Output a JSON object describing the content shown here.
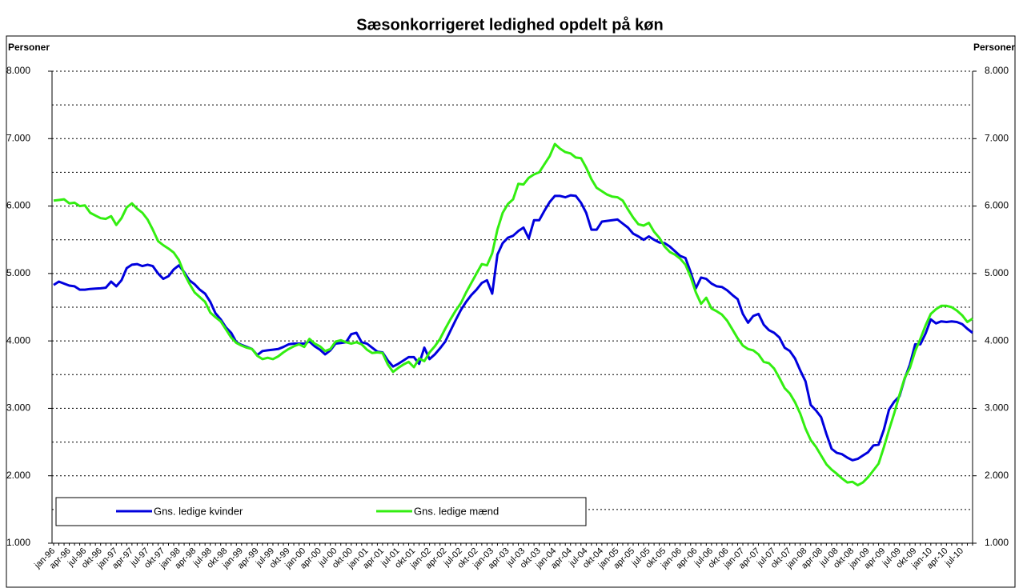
{
  "chart_data": {
    "type": "line",
    "title": "Sæsonkorrigeret ledighed opdelt på køn",
    "y_label": "Personer",
    "y2_label": "Personer",
    "categories": [
      "jan-96",
      null,
      null,
      "apr-96",
      null,
      null,
      "jul-96",
      null,
      null,
      "okt-96",
      null,
      null,
      "jan-97",
      null,
      null,
      "apr-97",
      null,
      null,
      "jul-97",
      null,
      null,
      "okt-97",
      null,
      null,
      "jan-98",
      null,
      null,
      "apr-98",
      null,
      null,
      "jul-98",
      null,
      null,
      "okt-98",
      null,
      null,
      "jan-99",
      null,
      null,
      "apr-99",
      null,
      null,
      "jul-99",
      null,
      null,
      "okt-99",
      null,
      null,
      "jan-00",
      null,
      null,
      "apr-00",
      null,
      null,
      "jul-00",
      null,
      null,
      "okt-00",
      null,
      null,
      "jan-01",
      null,
      null,
      "apr-01",
      null,
      null,
      "jul-01",
      null,
      null,
      "okt-01",
      null,
      null,
      "jan-02",
      null,
      null,
      "apr-02",
      null,
      null,
      "jul-02",
      null,
      null,
      "okt-02",
      null,
      null,
      "jan-03",
      null,
      null,
      "apr-03",
      null,
      null,
      "jul-03",
      null,
      null,
      "okt-03",
      null,
      null,
      "jan-04",
      null,
      null,
      "apr-04",
      null,
      null,
      "jul-04",
      null,
      null,
      "okt-04",
      null,
      null,
      "jan-05",
      null,
      null,
      "apr-05",
      null,
      null,
      "jul-05",
      null,
      null,
      "okt-05",
      null,
      null,
      "jan-06",
      null,
      null,
      "apr-06",
      null,
      null,
      "jul-06",
      null,
      null,
      "okt-06",
      null,
      null,
      "jan-07",
      null,
      null,
      "apr-07",
      null,
      null,
      "jul-07",
      null,
      null,
      "okt-07",
      null,
      null,
      "jan-08",
      null,
      null,
      "apr-08",
      null,
      null,
      "jul-08",
      null,
      null,
      "okt-08",
      null,
      null,
      "jan-09",
      null,
      null,
      "apr-09",
      null,
      null,
      "jul-09",
      null,
      null,
      "okt-09",
      null,
      null,
      "jan-10",
      null,
      null,
      "apr-10",
      null,
      null,
      "jul-10",
      null,
      null
    ],
    "series": [
      {
        "name": "Gns. ledige kvinder",
        "color": "#0000dd",
        "values": [
          4830,
          4880,
          4850,
          4820,
          4810,
          4760,
          4760,
          4770,
          4775,
          4780,
          4790,
          4880,
          4810,
          4900,
          5080,
          5130,
          5140,
          5110,
          5130,
          5110,
          5000,
          4920,
          4960,
          5060,
          5120,
          5020,
          4900,
          4840,
          4760,
          4700,
          4580,
          4410,
          4320,
          4200,
          4120,
          3980,
          3940,
          3910,
          3880,
          3790,
          3850,
          3860,
          3870,
          3880,
          3910,
          3950,
          3960,
          3960,
          3960,
          3990,
          3920,
          3870,
          3800,
          3860,
          3960,
          3970,
          3980,
          4100,
          4120,
          3980,
          3960,
          3900,
          3840,
          3830,
          3710,
          3620,
          3660,
          3710,
          3760,
          3760,
          3660,
          3900,
          3730,
          3800,
          3890,
          3990,
          4150,
          4310,
          4460,
          4580,
          4680,
          4760,
          4860,
          4900,
          4700,
          5280,
          5450,
          5530,
          5560,
          5630,
          5680,
          5520,
          5790,
          5790,
          5930,
          6060,
          6150,
          6150,
          6130,
          6160,
          6150,
          6050,
          5900,
          5650,
          5650,
          5770,
          5780,
          5790,
          5800,
          5740,
          5680,
          5590,
          5550,
          5500,
          5550,
          5500,
          5460,
          5450,
          5400,
          5330,
          5260,
          5230,
          5020,
          4780,
          4940,
          4920,
          4850,
          4810,
          4800,
          4750,
          4680,
          4620,
          4400,
          4270,
          4370,
          4400,
          4240,
          4160,
          4120,
          4050,
          3900,
          3850,
          3740,
          3560,
          3400,
          3050,
          2970,
          2870,
          2620,
          2400,
          2340,
          2320,
          2270,
          2230,
          2250,
          2300,
          2350,
          2450,
          2460,
          2680,
          2980,
          3100,
          3180,
          3440,
          3650,
          3950,
          3950,
          4110,
          4320,
          4260,
          4290,
          4280,
          4290,
          4280,
          4250,
          4180,
          4120
        ]
      },
      {
        "name": "Gns. ledige mænd",
        "color": "#33ee11",
        "values": [
          6080,
          6090,
          6100,
          6040,
          6050,
          6000,
          6010,
          5900,
          5860,
          5820,
          5810,
          5850,
          5720,
          5820,
          5980,
          6040,
          5960,
          5900,
          5800,
          5650,
          5480,
          5420,
          5370,
          5310,
          5200,
          5000,
          4850,
          4720,
          4650,
          4580,
          4420,
          4350,
          4290,
          4170,
          4050,
          3970,
          3930,
          3900,
          3880,
          3780,
          3730,
          3750,
          3730,
          3770,
          3830,
          3880,
          3920,
          3950,
          3910,
          4030,
          3960,
          3920,
          3850,
          3880,
          3990,
          4010,
          3980,
          3960,
          3980,
          3950,
          3870,
          3820,
          3830,
          3820,
          3650,
          3540,
          3600,
          3650,
          3690,
          3610,
          3740,
          3700,
          3830,
          3920,
          4030,
          4180,
          4320,
          4450,
          4560,
          4720,
          4860,
          5000,
          5140,
          5120,
          5300,
          5650,
          5900,
          6030,
          6100,
          6330,
          6320,
          6420,
          6470,
          6500,
          6620,
          6740,
          6920,
          6850,
          6800,
          6780,
          6720,
          6710,
          6570,
          6400,
          6270,
          6220,
          6170,
          6140,
          6130,
          6080,
          5950,
          5830,
          5730,
          5710,
          5750,
          5620,
          5530,
          5400,
          5320,
          5280,
          5220,
          5130,
          4950,
          4720,
          4550,
          4640,
          4480,
          4440,
          4390,
          4300,
          4170,
          4040,
          3930,
          3880,
          3860,
          3800,
          3690,
          3670,
          3590,
          3450,
          3300,
          3220,
          3090,
          2920,
          2700,
          2530,
          2430,
          2300,
          2170,
          2090,
          2030,
          1960,
          1900,
          1910,
          1860,
          1900,
          1980,
          2080,
          2180,
          2420,
          2680,
          2930,
          3200,
          3450,
          3600,
          3850,
          4030,
          4230,
          4400,
          4470,
          4520,
          4520,
          4500,
          4450,
          4380,
          4280,
          4330
        ]
      }
    ],
    "ylim": [
      1000,
      8000
    ],
    "yticks": [
      {
        "value": 1000,
        "label": "1.000"
      },
      {
        "value": 2000,
        "label": "2.000"
      },
      {
        "value": 3000,
        "label": "3.000"
      },
      {
        "value": 4000,
        "label": "4.000"
      },
      {
        "value": 5000,
        "label": "5.000"
      },
      {
        "value": 6000,
        "label": "6.000"
      },
      {
        "value": 7000,
        "label": "7.000"
      },
      {
        "value": 8000,
        "label": "8.000"
      }
    ],
    "y2lim": [
      1000,
      8000
    ],
    "y2ticks": [
      {
        "value": 1000,
        "label": "1.000"
      },
      {
        "value": 2000,
        "label": "2.000"
      },
      {
        "value": 3000,
        "label": "3.000"
      },
      {
        "value": 4000,
        "label": "4.000"
      },
      {
        "value": 5000,
        "label": "5.000"
      },
      {
        "value": 6000,
        "label": "6.000"
      },
      {
        "value": 7000,
        "label": "7.000"
      },
      {
        "value": 8000,
        "label": "8.000"
      }
    ],
    "grid": true,
    "legend": "bottom-left"
  }
}
